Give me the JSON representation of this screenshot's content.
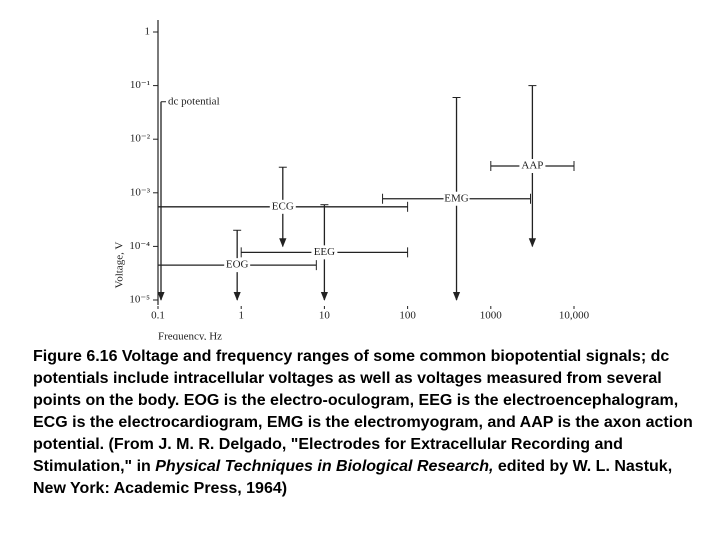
{
  "chart_data": {
    "type": "range-cross",
    "xlabel": "Frequency, Hz",
    "ylabel": "Voltage, V",
    "xscale": "log",
    "yscale": "log",
    "xlim": [
      0.1,
      10000
    ],
    "ylim": [
      1e-05,
      1
    ],
    "xticks": [
      0.1,
      1,
      10,
      100,
      1000,
      {
        "value": 10000,
        "label": "10,000"
      }
    ],
    "yticks": [
      {
        "value": 1,
        "label": "1"
      },
      {
        "value": 0.1,
        "label": "10⁻¹"
      },
      {
        "value": 0.01,
        "label": "10⁻²"
      },
      {
        "value": 0.001,
        "label": "10⁻³"
      },
      {
        "value": 0.0001,
        "label": "10⁻⁴"
      },
      {
        "value": 1e-05,
        "label": "10⁻⁵"
      }
    ],
    "color": "#222",
    "dc": {
      "name": "dc potential",
      "voltage": [
        1e-05,
        0.05
      ]
    },
    "signals": [
      {
        "name": "EOG",
        "freq": [
          0.1,
          8
        ],
        "voltage": [
          1e-05,
          0.0002
        ]
      },
      {
        "name": "EEG",
        "freq": [
          1,
          100
        ],
        "voltage": [
          1e-05,
          0.0006
        ]
      },
      {
        "name": "ECG",
        "freq": [
          0.1,
          100
        ],
        "voltage": [
          0.0001,
          0.003
        ]
      },
      {
        "name": "EMG",
        "freq": [
          50,
          3000
        ],
        "voltage": [
          1e-05,
          0.06
        ]
      },
      {
        "name": "AAP",
        "freq": [
          1000,
          10000
        ],
        "voltage": [
          0.0001,
          0.1
        ]
      }
    ],
    "caption": [
      "Figure 6.16 Voltage and frequency ranges of some common biopotential signals; dc potentials include intracellular voltages as well as voltages measured from several points on the body. EOG is the electro-oculogram, EEG is the electroencephalogram, ECG is the electrocardiogram, EMG is the electromyogram, and AAP is the axon action potential. (From J. M. R. Delgado, \"Electrodes for Extracellular Recording and Stimulation,\" in ",
      "Physical Techniques in Biological Research,",
      " edited by W. L. Nastuk, New York: Academic Press, 1964)"
    ]
  }
}
